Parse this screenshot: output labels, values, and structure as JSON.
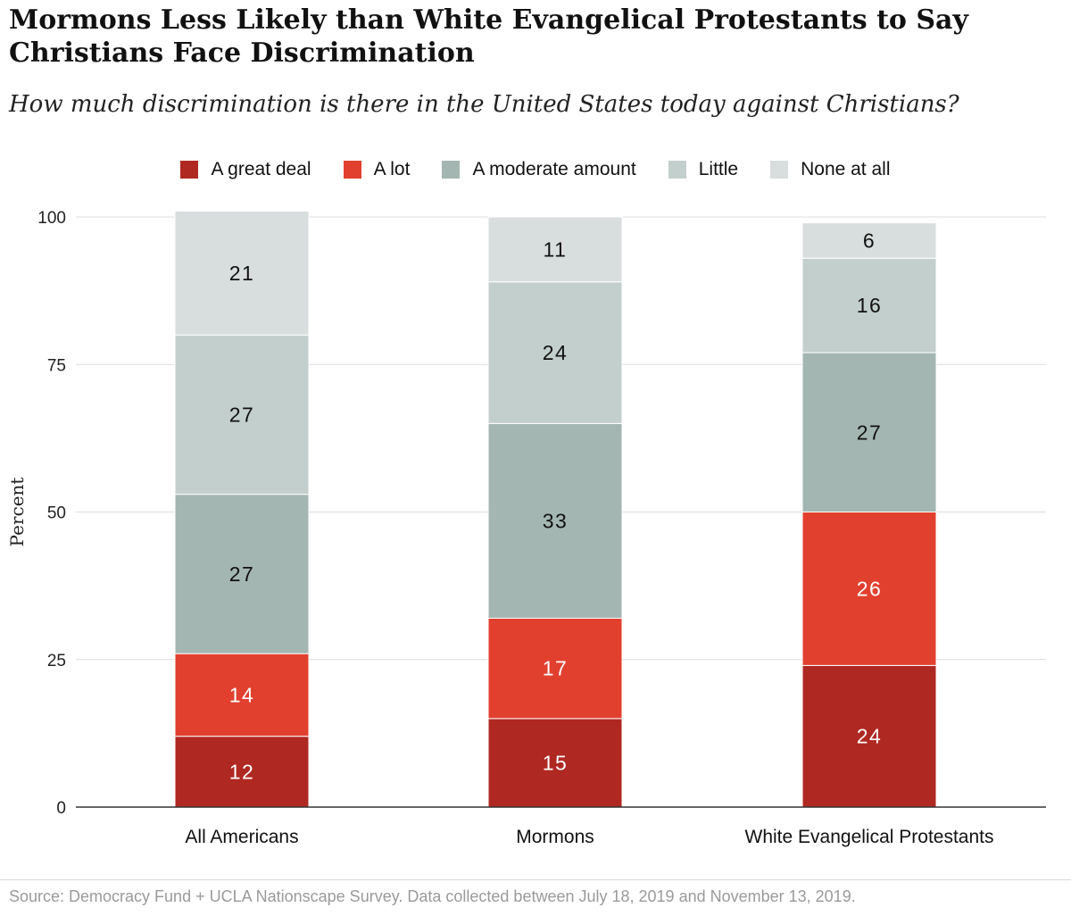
{
  "title": "Mormons Less Likely than White Evangelical Protestants to Say Christians Face Discrimination",
  "subtitle": "How much discrimination is there in the United States today against Christians?",
  "source": "Source: Democracy Fund + UCLA Nationscape Survey. Data collected between July 18, 2019 and November 13, 2019.",
  "chart_data": {
    "type": "bar",
    "stacked": true,
    "categories": [
      "All Americans",
      "Mormons",
      "White Evangelical Protestants"
    ],
    "ylabel": "Percent",
    "xlabel": "",
    "ylim": [
      0,
      100
    ],
    "yticks": [
      0,
      25,
      50,
      75,
      100
    ],
    "grid": true,
    "legend_position": "top-center",
    "series": [
      {
        "name": "A great deal",
        "color": "#b02822",
        "label_color": "#ffffff",
        "values": [
          12,
          15,
          24
        ]
      },
      {
        "name": "A lot",
        "color": "#e2402f",
        "label_color": "#ffffff",
        "values": [
          14,
          17,
          26
        ]
      },
      {
        "name": "A moderate amount",
        "color": "#a4b6b1",
        "label_color": "#111111",
        "values": [
          27,
          33,
          27
        ]
      },
      {
        "name": "Little",
        "color": "#c3cfcc",
        "label_color": "#111111",
        "values": [
          27,
          24,
          16
        ]
      },
      {
        "name": "None at all",
        "color": "#d8dedd",
        "label_color": "#111111",
        "values": [
          21,
          11,
          6
        ]
      }
    ]
  }
}
